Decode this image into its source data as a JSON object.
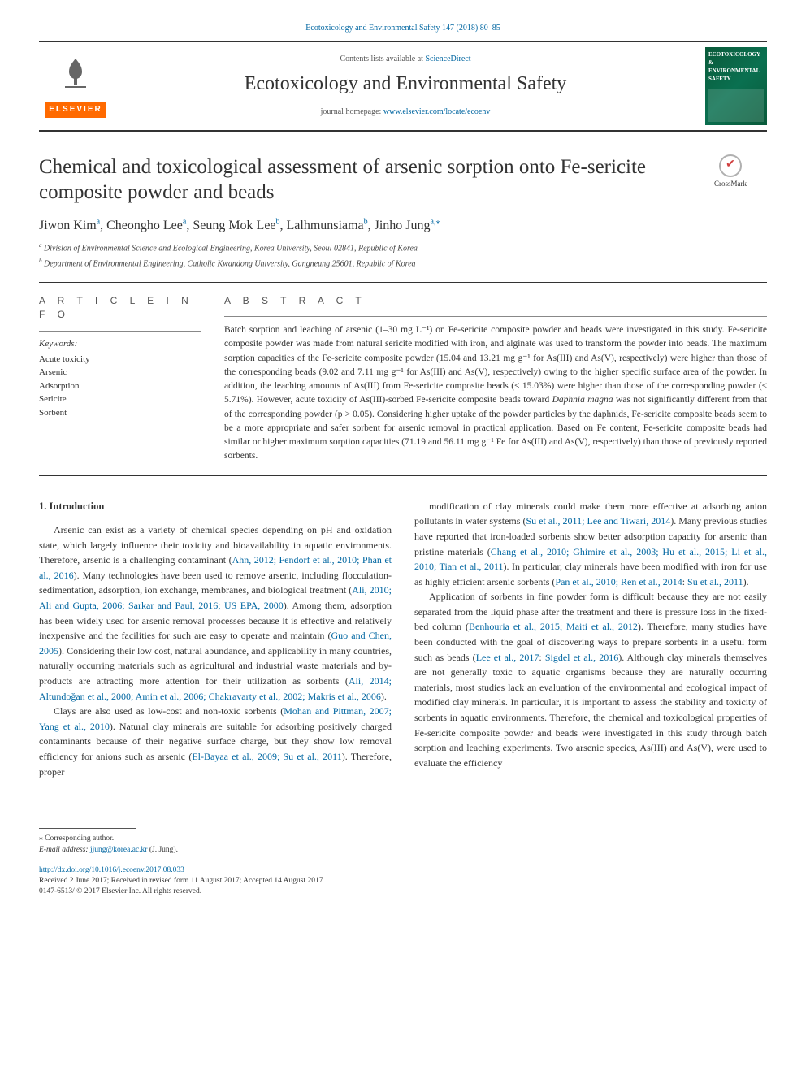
{
  "header": {
    "citation": "Ecotoxicology and Environmental Safety 147 (2018) 80–85",
    "contents_prefix": "Contents lists available at ",
    "contents_link": "ScienceDirect",
    "journal_name": "Ecotoxicology and Environmental Safety",
    "homepage_prefix": "journal homepage: ",
    "homepage_url": "www.elsevier.com/locate/ecoenv",
    "elsevier_label": "ELSEVIER",
    "cover_title": "ECOTOXICOLOGY & ENVIRONMENTAL SAFETY"
  },
  "crossmark_label": "CrossMark",
  "title": "Chemical and toxicological assessment of arsenic sorption onto Fe-sericite composite powder and beads",
  "authors_html": "Jiwon Kim|a|, Cheongho Lee|a|, Seung Mok Lee|b|, Lalhmunsiama|b|, Jinho Jung|a,*|",
  "authors": [
    {
      "name": "Jiwon Kim",
      "sup": "a"
    },
    {
      "name": "Cheongho Lee",
      "sup": "a"
    },
    {
      "name": "Seung Mok Lee",
      "sup": "b"
    },
    {
      "name": "Lalhmunsiama",
      "sup": "b"
    },
    {
      "name": "Jinho Jung",
      "sup": "a,",
      "star": true
    }
  ],
  "affiliations": {
    "a": "Division of Environmental Science and Ecological Engineering, Korea University, Seoul 02841, Republic of Korea",
    "b": "Department of Environmental Engineering, Catholic Kwandong University, Gangneung 25601, Republic of Korea"
  },
  "article_info_head": "A R T I C L E  I N F O",
  "keywords_label": "Keywords:",
  "keywords": [
    "Acute toxicity",
    "Arsenic",
    "Adsorption",
    "Sericite",
    "Sorbent"
  ],
  "abstract_head": "A B S T R A C T",
  "abstract": "Batch sorption and leaching of arsenic (1–30 mg L⁻¹) on Fe-sericite composite powder and beads were investigated in this study. Fe-sericite composite powder was made from natural sericite modified with iron, and alginate was used to transform the powder into beads. The maximum sorption capacities of the Fe-sericite composite powder (15.04 and 13.21 mg g⁻¹ for As(III) and As(V), respectively) were higher than those of the corresponding beads (9.02 and 7.11 mg g⁻¹ for As(III) and As(V), respectively) owing to the higher specific surface area of the powder. In addition, the leaching amounts of As(III) from Fe-sericite composite beads (≤ 15.03%) were higher than those of the corresponding powder (≤ 5.71%). However, acute toxicity of As(III)-sorbed Fe-sericite composite beads toward Daphnia magna was not significantly different from that of the corresponding powder (p > 0.05). Considering higher uptake of the powder particles by the daphnids, Fe-sericite composite beads seem to be a more appropriate and safer sorbent for arsenic removal in practical application. Based on Fe content, Fe-sericite composite beads had similar or higher maximum sorption capacities (71.19 and 56.11 mg g⁻¹ Fe for As(III) and As(V), respectively) than those of previously reported sorbents.",
  "section_heading": "1. Introduction",
  "col_left_text": "Arsenic can exist as a variety of chemical species depending on pH and oxidation state, which largely influence their toxicity and bioavailability in aquatic environments. Therefore, arsenic is a challenging contaminant (Ahn, 2012; Fendorf et al., 2010; Phan et al., 2016). Many technologies have been used to remove arsenic, including flocculation-sedimentation, adsorption, ion exchange, membranes, and biological treatment (Ali, 2010; Ali and Gupta, 2006; Sarkar and Paul, 2016; US EPA, 2000). Among them, adsorption has been widely used for arsenic removal processes because it is effective and relatively inexpensive and the facilities for such are easy to operate and maintain (Guo and Chen, 2005). Considering their low cost, natural abundance, and applicability in many countries, naturally occurring materials such as agricultural and industrial waste materials and by-products are attracting more attention for their utilization as sorbents (Ali, 2014; Altundoğan et al., 2000; Amin et al., 2006; Chakravarty et al., 2002; Makris et al., 2006).|||Clays are also used as low-cost and non-toxic sorbents (Mohan and Pittman, 2007; Yang et al., 2010). Natural clay minerals are suitable for adsorbing positively charged contaminants because of their negative surface charge, but they show low removal efficiency for anions such as arsenic (El-Bayaa et al., 2009; Su et al., 2011). Therefore, proper",
  "col_left_refs": [
    "Ahn, 2012; Fendorf et al., 2010; Phan et al., 2016",
    "Ali, 2010; Ali and Gupta, 2006; Sarkar and Paul, 2016; US EPA, 2000",
    "Guo and Chen, 2005",
    "Ali, 2014; Altundoğan et al., 2000; Amin et al., 2006; Chakravarty et al., 2002; Makris et al., 2006",
    "Mohan and Pittman, 2007; Yang et al., 2010",
    "El-Bayaa et al., 2009; Su et al., 2011"
  ],
  "col_right_text": "modification of clay minerals could make them more effective at adsorbing anion pollutants in water systems (Su et al., 2011; Lee and Tiwari, 2014). Many previous studies have reported that iron-loaded sorbents show better adsorption capacity for arsenic than pristine materials (Chang et al., 2010; Ghimire et al., 2003; Hu et al., 2015; Li et al., 2010; Tian et al., 2011). In particular, clay minerals have been modified with iron for use as highly efficient arsenic sorbents (Pan et al., 2010; Ren et al., 2014: Su et al., 2011).|||Application of sorbents in fine powder form is difficult because they are not easily separated from the liquid phase after the treatment and there is pressure loss in the fixed-bed column (Benhouria et al., 2015; Maiti et al., 2012). Therefore, many studies have been conducted with the goal of discovering ways to prepare sorbents in a useful form such as beads (Lee et al., 2017: Sigdel et al., 2016). Although clay minerals themselves are not generally toxic to aquatic organisms because they are naturally occurring materials, most studies lack an evaluation of the environmental and ecological impact of modified clay minerals. In particular, it is important to assess the stability and toxicity of sorbents in aquatic environments. Therefore, the chemical and toxicological properties of Fe-sericite composite powder and beads were investigated in this study through batch sorption and leaching experiments. Two arsenic species, As(III) and As(V), were used to evaluate the efficiency",
  "col_right_refs": [
    "Su et al., 2011; Lee and Tiwari, 2014",
    "Chang et al., 2010; Ghimire et al., 2003; Hu et al., 2015; Li et al., 2010; Tian et al., 2011",
    "Pan et al., 2010; Ren et al., 2014",
    "Su et al., 2011",
    "Benhouria et al., 2015; Maiti et al., 2012",
    "Lee et al., 2017",
    "Sigdel et al., 2016"
  ],
  "colors": {
    "link": "#0066a1",
    "text": "#333333",
    "elsevier_bg": "#ff6a00",
    "cover_bg": "#0a5a3a",
    "rule": "#333333"
  },
  "footer": {
    "corr_label": "⁎ Corresponding author.",
    "email_label": "E-mail address: ",
    "email": "jjung@korea.ac.kr",
    "email_person": " (J. Jung).",
    "doi": "http://dx.doi.org/10.1016/j.ecoenv.2017.08.033",
    "received": "Received 2 June 2017; Received in revised form 11 August 2017; Accepted 14 August 2017",
    "issn_copy": "0147-6513/ © 2017 Elsevier Inc. All rights reserved."
  }
}
